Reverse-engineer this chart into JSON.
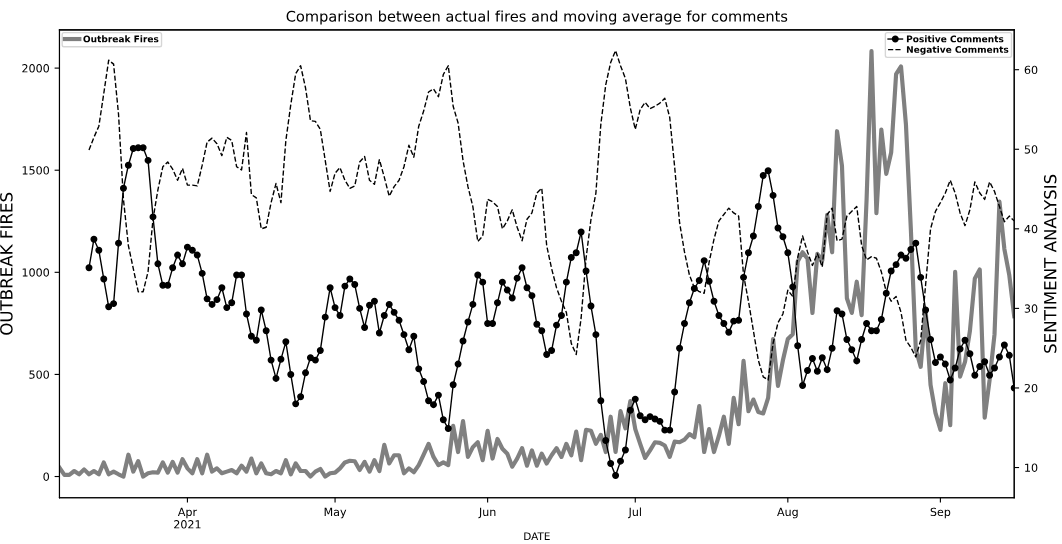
{
  "chart_data": {
    "type": "line",
    "title": "Comparison between actual fires and moving average for comments",
    "xlabel": "DATE",
    "ylabel": "OUTBREAK FIRES",
    "y2label": "SENTIMENT ANALYSIS",
    "xlim": [
      "2021-03-06",
      "2021-09-16"
    ],
    "xticks": [
      {
        "value": "2021-04-01",
        "label": "Apr\n2021"
      },
      {
        "value": "2021-05-01",
        "label": "May"
      },
      {
        "value": "2021-06-01",
        "label": "Jun"
      },
      {
        "value": "2021-07-01",
        "label": "Jul"
      },
      {
        "value": "2021-08-01",
        "label": "Aug"
      },
      {
        "value": "2021-09-01",
        "label": "Sep"
      }
    ],
    "ylim": [
      -104,
      2187
    ],
    "yticks": [
      0,
      500,
      1000,
      1500,
      2000
    ],
    "y2lim": [
      6.2,
      65
    ],
    "y2ticks": [
      10,
      20,
      30,
      40,
      50,
      60
    ],
    "grid": false,
    "legend": "top right",
    "x": [
      "2021-03-12",
      "2021-03-13",
      "2021-03-14",
      "2021-03-15",
      "2021-03-16",
      "2021-03-17",
      "2021-03-18",
      "2021-03-19",
      "2021-03-20",
      "2021-03-21",
      "2021-03-22",
      "2021-03-23",
      "2021-03-24",
      "2021-03-25",
      "2021-03-26",
      "2021-03-27",
      "2021-03-28",
      "2021-03-29",
      "2021-03-30",
      "2021-03-31",
      "2021-04-01",
      "2021-04-02",
      "2021-04-03",
      "2021-04-04",
      "2021-04-05",
      "2021-04-06",
      "2021-04-07",
      "2021-04-08",
      "2021-04-09",
      "2021-04-10",
      "2021-04-11",
      "2021-04-12",
      "2021-04-13",
      "2021-04-14",
      "2021-04-15",
      "2021-04-16",
      "2021-04-17",
      "2021-04-18",
      "2021-04-19",
      "2021-04-20",
      "2021-04-21",
      "2021-04-22",
      "2021-04-23",
      "2021-04-24",
      "2021-04-25",
      "2021-04-26",
      "2021-04-27",
      "2021-04-28",
      "2021-04-29",
      "2021-04-30",
      "2021-05-01",
      "2021-05-02",
      "2021-05-03",
      "2021-05-04",
      "2021-05-05",
      "2021-05-06",
      "2021-05-07",
      "2021-05-08",
      "2021-05-09",
      "2021-05-10",
      "2021-05-11",
      "2021-05-12",
      "2021-05-13",
      "2021-05-14",
      "2021-05-15",
      "2021-05-16",
      "2021-05-17",
      "2021-05-18",
      "2021-05-19",
      "2021-05-20",
      "2021-05-21",
      "2021-05-22",
      "2021-05-23",
      "2021-05-24",
      "2021-05-25",
      "2021-05-26",
      "2021-05-27",
      "2021-05-28",
      "2021-05-29",
      "2021-05-30",
      "2021-05-31",
      "2021-06-01",
      "2021-06-02",
      "2021-06-03",
      "2021-06-04",
      "2021-06-05",
      "2021-06-06",
      "2021-06-07",
      "2021-06-08",
      "2021-06-09",
      "2021-06-10",
      "2021-06-11",
      "2021-06-12",
      "2021-06-13",
      "2021-06-14",
      "2021-06-15",
      "2021-06-16",
      "2021-06-17",
      "2021-06-18",
      "2021-06-19",
      "2021-06-20",
      "2021-06-21",
      "2021-06-22",
      "2021-06-23",
      "2021-06-24",
      "2021-06-25",
      "2021-06-26",
      "2021-06-27",
      "2021-06-28",
      "2021-06-29",
      "2021-06-30",
      "2021-07-01",
      "2021-07-02",
      "2021-07-03",
      "2021-07-04",
      "2021-07-05",
      "2021-07-06",
      "2021-07-07",
      "2021-07-08",
      "2021-07-09",
      "2021-07-10",
      "2021-07-11",
      "2021-07-12",
      "2021-07-13",
      "2021-07-14",
      "2021-07-15",
      "2021-07-16",
      "2021-07-17",
      "2021-07-18",
      "2021-07-19",
      "2021-07-20",
      "2021-07-21",
      "2021-07-22",
      "2021-07-23",
      "2021-07-24",
      "2021-07-25",
      "2021-07-26",
      "2021-07-27",
      "2021-07-28",
      "2021-07-29",
      "2021-07-30",
      "2021-07-31",
      "2021-08-01",
      "2021-08-02",
      "2021-08-03",
      "2021-08-04",
      "2021-08-05",
      "2021-08-06",
      "2021-08-07",
      "2021-08-08",
      "2021-08-09",
      "2021-08-10",
      "2021-08-11",
      "2021-08-12",
      "2021-08-13",
      "2021-08-14",
      "2021-08-15",
      "2021-08-16",
      "2021-08-17",
      "2021-08-18",
      "2021-08-19",
      "2021-08-20",
      "2021-08-21",
      "2021-08-22",
      "2021-08-23",
      "2021-08-24",
      "2021-08-25",
      "2021-08-26",
      "2021-08-27",
      "2021-08-28",
      "2021-08-29",
      "2021-08-30",
      "2021-08-31",
      "2021-09-01",
      "2021-09-02",
      "2021-09-03",
      "2021-09-04",
      "2021-09-05",
      "2021-09-06",
      "2021-09-07",
      "2021-09-08",
      "2021-09-09",
      "2021-09-10",
      "2021-09-11",
      "2021-09-12",
      "2021-09-13",
      "2021-09-14",
      "2021-09-15",
      "2021-09-16"
    ],
    "series": [
      {
        "name": "Outbreak Fires",
        "color": "#808080",
        "axis": "y",
        "line_style": "solid",
        "marker": "none",
        "x": [
          "2021-03-06",
          "2021-03-07",
          "2021-03-08",
          "2021-03-09",
          "2021-03-10",
          "2021-03-11",
          "2021-03-12",
          "2021-03-13",
          "2021-03-14",
          "2021-03-15",
          "2021-03-16",
          "2021-03-17",
          "2021-03-18",
          "2021-03-19",
          "2021-03-20",
          "2021-03-21",
          "2021-03-22",
          "2021-03-23",
          "2021-03-24",
          "2021-03-25",
          "2021-03-26",
          "2021-03-27",
          "2021-03-28",
          "2021-03-29",
          "2021-03-30",
          "2021-03-31",
          "2021-04-01",
          "2021-04-02",
          "2021-04-03",
          "2021-04-04",
          "2021-04-05",
          "2021-04-06",
          "2021-04-07",
          "2021-04-08",
          "2021-04-09",
          "2021-04-10",
          "2021-04-11",
          "2021-04-12",
          "2021-04-13",
          "2021-04-14",
          "2021-04-15",
          "2021-04-16",
          "2021-04-17",
          "2021-04-18",
          "2021-04-19",
          "2021-04-20",
          "2021-04-21",
          "2021-04-22",
          "2021-04-23",
          "2021-04-24",
          "2021-04-25",
          "2021-04-26",
          "2021-04-27",
          "2021-04-28",
          "2021-04-29",
          "2021-04-30",
          "2021-05-01",
          "2021-05-02",
          "2021-05-03",
          "2021-05-04",
          "2021-05-05",
          "2021-05-06",
          "2021-05-07",
          "2021-05-08",
          "2021-05-09",
          "2021-05-10",
          "2021-05-11",
          "2021-05-12",
          "2021-05-13",
          "2021-05-14",
          "2021-05-15",
          "2021-05-16",
          "2021-05-17",
          "2021-05-18",
          "2021-05-19",
          "2021-05-20",
          "2021-05-21",
          "2021-05-22",
          "2021-05-23",
          "2021-05-24",
          "2021-05-25",
          "2021-05-26",
          "2021-05-27",
          "2021-05-28",
          "2021-05-29",
          "2021-05-30",
          "2021-05-31",
          "2021-06-01",
          "2021-06-02",
          "2021-06-03",
          "2021-06-04",
          "2021-06-05",
          "2021-06-06",
          "2021-06-07",
          "2021-06-08",
          "2021-06-09",
          "2021-06-10",
          "2021-06-11",
          "2021-06-12",
          "2021-06-13",
          "2021-06-14",
          "2021-06-15",
          "2021-06-16",
          "2021-06-17",
          "2021-06-18",
          "2021-06-19",
          "2021-06-20",
          "2021-06-21",
          "2021-06-22",
          "2021-06-23",
          "2021-06-24",
          "2021-06-25",
          "2021-06-26",
          "2021-06-27",
          "2021-06-28",
          "2021-06-29",
          "2021-06-30",
          "2021-07-01",
          "2021-07-02",
          "2021-07-03",
          "2021-07-04",
          "2021-07-05",
          "2021-07-06",
          "2021-07-07",
          "2021-07-08",
          "2021-07-09",
          "2021-07-10",
          "2021-07-11",
          "2021-07-12",
          "2021-07-13",
          "2021-07-14",
          "2021-07-15",
          "2021-07-16",
          "2021-07-17",
          "2021-07-18",
          "2021-07-19",
          "2021-07-20",
          "2021-07-21",
          "2021-07-22",
          "2021-07-23",
          "2021-07-24",
          "2021-07-25",
          "2021-07-26",
          "2021-07-27",
          "2021-07-28",
          "2021-07-29",
          "2021-07-30",
          "2021-07-31",
          "2021-08-01",
          "2021-08-02",
          "2021-08-03",
          "2021-08-04",
          "2021-08-05",
          "2021-08-06",
          "2021-08-07",
          "2021-08-08",
          "2021-08-09",
          "2021-08-10",
          "2021-08-11",
          "2021-08-12",
          "2021-08-13",
          "2021-08-14",
          "2021-08-15",
          "2021-08-16",
          "2021-08-17",
          "2021-08-18",
          "2021-08-19",
          "2021-08-20",
          "2021-08-21",
          "2021-08-22",
          "2021-08-23",
          "2021-08-24",
          "2021-08-25",
          "2021-08-26",
          "2021-08-27",
          "2021-08-28",
          "2021-08-29",
          "2021-08-30",
          "2021-08-31",
          "2021-09-01",
          "2021-09-02",
          "2021-09-03",
          "2021-09-04",
          "2021-09-05",
          "2021-09-06",
          "2021-09-07",
          "2021-09-08",
          "2021-09-09",
          "2021-09-10",
          "2021-09-11",
          "2021-09-12",
          "2021-09-13",
          "2021-09-14",
          "2021-09-15",
          "2021-09-16"
        ],
        "values": [
          43,
          8,
          8,
          27,
          11,
          35,
          11,
          27,
          11,
          69,
          11,
          24,
          11,
          0,
          107,
          24,
          75,
          0,
          16,
          21,
          19,
          69,
          19,
          72,
          19,
          85,
          40,
          16,
          85,
          16,
          107,
          24,
          40,
          16,
          24,
          32,
          16,
          53,
          24,
          88,
          16,
          64,
          16,
          11,
          27,
          16,
          80,
          11,
          64,
          27,
          27,
          0,
          24,
          37,
          0,
          16,
          19,
          40,
          69,
          77,
          75,
          32,
          72,
          24,
          80,
          27,
          155,
          64,
          104,
          104,
          16,
          40,
          21,
          56,
          107,
          160,
          96,
          56,
          69,
          56,
          248,
          120,
          272,
          96,
          144,
          168,
          80,
          224,
          88,
          184,
          136,
          112,
          48,
          88,
          139,
          53,
          128,
          53,
          112,
          64,
          104,
          139,
          96,
          160,
          104,
          220,
          80,
          229,
          224,
          160,
          204,
          120,
          293,
          120,
          320,
          236,
          369,
          232,
          160,
          91,
          128,
          168,
          165,
          152,
          96,
          171,
          168,
          181,
          208,
          192,
          345,
          120,
          232,
          120,
          200,
          293,
          160,
          385,
          256,
          566,
          320,
          377,
          316,
          309,
          385,
          673,
          444,
          569,
          673,
          697,
          1053,
          1098,
          1066,
          801,
          1090,
          1058,
          1282,
          1098,
          1691,
          1522,
          873,
          801,
          954,
          790,
          1354,
          2083,
          1290,
          1699,
          1482,
          1587,
          1971,
          2008,
          1724,
          1210,
          625,
          537,
          817,
          449,
          312,
          229,
          457,
          252,
          1002,
          489,
          561,
          713,
          970,
          1014,
          288,
          473,
          697,
          1346,
          1114,
          986,
          785
        ]
      },
      {
        "name": "Positive Comments",
        "color": "#000000",
        "axis": "y2",
        "line_style": "solid",
        "marker": "circle",
        "values": [
          35.1,
          38.7,
          37.3,
          33.7,
          30.2,
          30.6,
          38.2,
          45.1,
          48.0,
          50.1,
          50.2,
          50.2,
          48.6,
          41.5,
          35.6,
          32.9,
          32.9,
          35.1,
          36.7,
          35.6,
          37.7,
          37.3,
          36.7,
          34.4,
          31.2,
          30.5,
          31.1,
          32.6,
          30.1,
          30.7,
          34.2,
          34.2,
          29.3,
          26.5,
          26.0,
          29.8,
          27.2,
          23.5,
          21.2,
          23.6,
          25.8,
          21.7,
          18.0,
          18.9,
          21.9,
          23.8,
          23.5,
          24.7,
          28.9,
          32.6,
          30.1,
          29.1,
          32.8,
          33.7,
          33.0,
          30.0,
          27.6,
          30.4,
          30.9,
          26.9,
          29.1,
          30.5,
          29.5,
          28.5,
          26.7,
          24.8,
          26.5,
          22.4,
          20.8,
          18.4,
          17.9,
          19.1,
          16.0,
          14.9,
          20.4,
          23.0,
          25.9,
          28.3,
          30.5,
          34.2,
          33.3,
          28.1,
          28.1,
          30.7,
          33.3,
          32.3,
          31.3,
          33.8,
          35.1,
          32.6,
          31.6,
          28.0,
          27.2,
          24.2,
          24.7,
          27.9,
          29.1,
          33.3,
          36.4,
          37.0,
          39.6,
          34.7,
          30.3,
          26.7,
          18.4,
          13.4,
          10.5,
          9.0,
          10.8,
          12.2,
          17.2,
          18.6,
          16.5,
          16.0,
          16.4,
          16.1,
          15.8,
          14.7,
          14.7,
          19.5,
          25.0,
          28.1,
          30.7,
          32.5,
          33.5,
          36.0,
          33.4,
          30.9,
          29.1,
          28.1,
          27.0,
          28.4,
          28.5,
          33.9,
          37.0,
          39.1,
          42.8,
          46.7,
          47.3,
          44.2,
          40.1,
          39.0,
          37.0,
          32.7,
          25.3,
          20.3,
          22.2,
          23.7,
          22.1,
          23.8,
          22.3,
          25.0,
          29.7,
          29.3,
          26.1,
          24.8,
          23.4,
          26.1,
          28.1,
          27.2,
          27.2,
          28.6,
          31.9,
          34.7,
          35.5,
          36.7,
          36.3,
          37.4,
          38.2,
          33.9,
          29.8,
          26.1,
          23.2,
          23.9,
          23.0,
          21.0,
          22.5,
          24.9,
          26.0,
          24.3,
          21.6,
          22.7,
          23.3,
          21.6,
          22.5,
          23.9,
          25.4,
          24.1,
          20.0
        ]
      },
      {
        "name": "Negative Comments",
        "color": "#000000",
        "axis": "y2",
        "line_style": "dashed",
        "marker": "none",
        "values": [
          49.9,
          51.5,
          52.9,
          57.0,
          61.2,
          60.7,
          54.4,
          43.7,
          37.9,
          35.0,
          32.1,
          32.1,
          34.6,
          41.2,
          44.9,
          47.8,
          48.4,
          47.5,
          46.1,
          47.6,
          45.5,
          45.5,
          45.4,
          48.0,
          50.9,
          51.4,
          50.7,
          49.2,
          51.5,
          51.1,
          47.8,
          47.4,
          52.1,
          44.3,
          43.9,
          40.0,
          40.2,
          43.3,
          45.7,
          43.3,
          51.1,
          55.6,
          59.5,
          60.5,
          57.7,
          53.6,
          53.5,
          52.5,
          48.6,
          44.7,
          47.0,
          47.7,
          46.1,
          45.1,
          45.4,
          48.4,
          49.1,
          46.1,
          45.6,
          48.7,
          46.5,
          44.1,
          45.3,
          46.1,
          47.8,
          50.5,
          49.0,
          52.9,
          54.8,
          57.2,
          57.6,
          56.6,
          59.4,
          60.5,
          55.4,
          53.3,
          48.6,
          45.3,
          42.8,
          38.4,
          39.1,
          43.7,
          43.4,
          42.8,
          40.0,
          41.0,
          42.4,
          40.2,
          38.5,
          41.2,
          42.0,
          44.5,
          45.1,
          37.9,
          35.0,
          32.6,
          30.9,
          29.5,
          25.6,
          24.2,
          28.8,
          36.3,
          41.2,
          44.5,
          53.1,
          58.1,
          60.9,
          62.4,
          60.5,
          58.9,
          55.2,
          52.5,
          55.0,
          55.9,
          55.1,
          55.4,
          55.8,
          56.4,
          54.0,
          47.8,
          40.8,
          37.1,
          34.2,
          32.6,
          32.1,
          31.9,
          35.8,
          38.7,
          41.0,
          41.8,
          42.6,
          42.0,
          41.6,
          34.2,
          30.9,
          27.2,
          23.5,
          21.4,
          21.0,
          25.6,
          28.2,
          29.3,
          32.3,
          31.5,
          36.4,
          39.1,
          37.1,
          35.4,
          36.9,
          35.2,
          41.8,
          42.6,
          38.5,
          38.7,
          41.6,
          42.2,
          42.8,
          37.9,
          36.1,
          36.5,
          36.3,
          34.6,
          32.1,
          30.9,
          31.5,
          29.5,
          26.0,
          25.1,
          23.9,
          26.0,
          33.0,
          40.0,
          42.2,
          43.3,
          44.5,
          46.1,
          44.5,
          42.0,
          40.4,
          42.4,
          45.9,
          44.5,
          43.7,
          45.9,
          44.7,
          42.8,
          40.9,
          41.6,
          41.0
        ]
      }
    ]
  }
}
